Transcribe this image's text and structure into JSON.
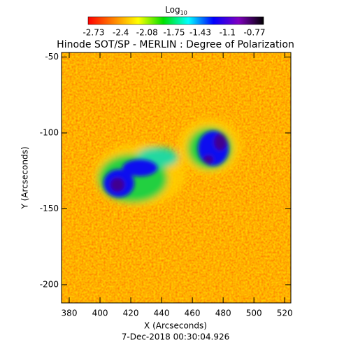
{
  "chart_data": {
    "type": "heatmap",
    "title": "Hinode SOT/SP - MERLIN : Degree of Polarization",
    "xlabel": "X (Arcseconds)",
    "ylabel": "Y (Arcseconds)",
    "footer": "7-Dec-2018 00:30:04.926",
    "colorbar_label": "Log",
    "colorbar_label_sub": "10",
    "colormap": [
      "#ff0000",
      "#ff8000",
      "#ffff00",
      "#00e000",
      "#00ffff",
      "#0000ff",
      "#8000c0",
      "#000000"
    ],
    "clim": [
      -2.73,
      -0.77
    ],
    "cticks": [
      -2.73,
      -2.4,
      -2.08,
      -1.75,
      -1.43,
      -1.1,
      -0.77
    ],
    "xlim": [
      375,
      524
    ],
    "xticks": [
      380,
      400,
      420,
      440,
      460,
      480,
      500,
      520
    ],
    "ylim": [
      -212,
      -47
    ],
    "yticks": [
      -50,
      -100,
      -150,
      -200
    ]
  }
}
